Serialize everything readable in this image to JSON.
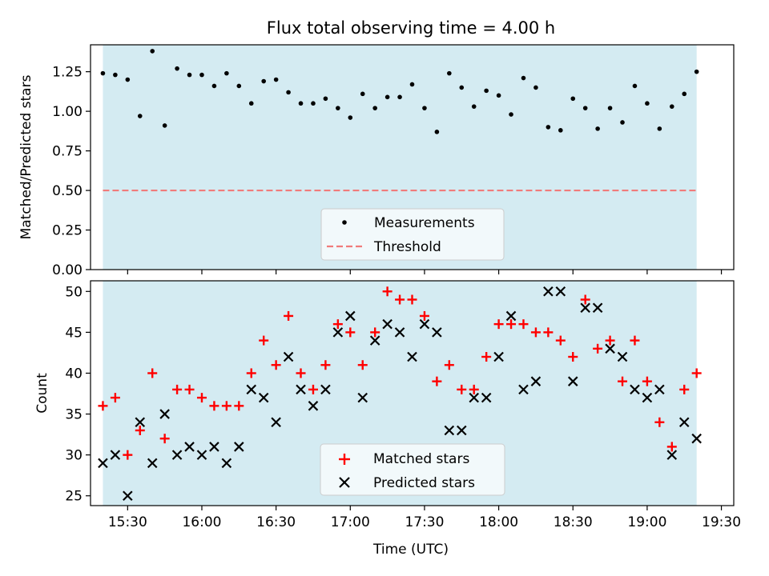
{
  "chart_data": [
    {
      "type": "scatter",
      "title": "Flux total observing time = 4.00 h",
      "ylabel": "Matched/Predicted stars",
      "xlabel": "",
      "xlim": [
        "15:15",
        "19:35"
      ],
      "ylim": [
        0,
        1.42
      ],
      "yticks": [
        0.0,
        0.25,
        0.5,
        0.75,
        1.0,
        1.25
      ],
      "ytick_labels": [
        "0.00",
        "0.25",
        "0.50",
        "0.75",
        "1.00",
        "1.25"
      ],
      "observing_window": [
        "15:20",
        "19:20"
      ],
      "window_color": "#d4ebf2",
      "legend_position": "lower center",
      "series": [
        {
          "name": "Measurements",
          "marker": "dot",
          "color": "#000000",
          "x": [
            "15:20",
            "15:25",
            "15:30",
            "15:35",
            "15:40",
            "15:45",
            "15:50",
            "15:55",
            "16:00",
            "16:05",
            "16:10",
            "16:15",
            "16:20",
            "16:25",
            "16:30",
            "16:35",
            "16:40",
            "16:45",
            "16:50",
            "16:55",
            "17:00",
            "17:05",
            "17:10",
            "17:15",
            "17:20",
            "17:25",
            "17:30",
            "17:35",
            "17:40",
            "17:45",
            "17:50",
            "17:55",
            "18:00",
            "18:05",
            "18:10",
            "18:15",
            "18:20",
            "18:25",
            "18:30",
            "18:35",
            "18:40",
            "18:45",
            "18:50",
            "18:55",
            "19:00",
            "19:05",
            "19:10",
            "19:15",
            "19:20"
          ],
          "values": [
            1.24,
            1.23,
            1.2,
            0.97,
            1.38,
            0.91,
            1.27,
            1.23,
            1.23,
            1.16,
            1.24,
            1.16,
            1.05,
            1.19,
            1.2,
            1.12,
            1.05,
            1.05,
            1.08,
            1.02,
            0.96,
            1.11,
            1.02,
            1.09,
            1.09,
            1.17,
            1.02,
            0.87,
            1.24,
            1.15,
            1.03,
            1.13,
            1.1,
            0.98,
            1.21,
            1.15,
            0.9,
            0.88,
            1.08,
            1.02,
            0.89,
            1.02,
            0.93,
            1.16,
            1.05,
            0.89,
            1.03,
            1.11,
            1.25
          ]
        },
        {
          "name": "Threshold",
          "style": "dashed-line",
          "color": "#f07b7b",
          "x": [
            "15:20",
            "19:20"
          ],
          "values": [
            0.5,
            0.5
          ]
        }
      ]
    },
    {
      "type": "scatter",
      "title": "",
      "ylabel": "Count",
      "xlabel": "Time (UTC)",
      "xlim": [
        "15:15",
        "19:35"
      ],
      "ylim": [
        23.8,
        51.3
      ],
      "yticks": [
        25,
        30,
        35,
        40,
        45,
        50
      ],
      "ytick_labels": [
        "25",
        "30",
        "35",
        "40",
        "45",
        "50"
      ],
      "xticks": [
        "15:30",
        "16:00",
        "16:30",
        "17:00",
        "17:30",
        "18:00",
        "18:30",
        "19:00",
        "19:30"
      ],
      "observing_window": [
        "15:20",
        "19:20"
      ],
      "window_color": "#d4ebf2",
      "legend_position": "lower center",
      "series": [
        {
          "name": "Matched stars",
          "marker": "plus",
          "color": "#ff0000",
          "x": [
            "15:20",
            "15:25",
            "15:30",
            "15:35",
            "15:40",
            "15:45",
            "15:50",
            "15:55",
            "16:00",
            "16:05",
            "16:10",
            "16:15",
            "16:20",
            "16:25",
            "16:30",
            "16:35",
            "16:40",
            "16:45",
            "16:50",
            "16:55",
            "17:00",
            "17:05",
            "17:10",
            "17:15",
            "17:20",
            "17:25",
            "17:30",
            "17:35",
            "17:40",
            "17:45",
            "17:50",
            "17:55",
            "18:00",
            "18:05",
            "18:10",
            "18:15",
            "18:20",
            "18:25",
            "18:30",
            "18:35",
            "18:40",
            "18:45",
            "18:50",
            "18:55",
            "19:00",
            "19:05",
            "19:10",
            "19:15",
            "19:20"
          ],
          "values": [
            36,
            37,
            30,
            33,
            40,
            32,
            38,
            38,
            37,
            36,
            36,
            36,
            40,
            44,
            41,
            47,
            40,
            38,
            41,
            46,
            45,
            41,
            45,
            50,
            49,
            49,
            47,
            39,
            41,
            38,
            38,
            42,
            46,
            46,
            46,
            45,
            45,
            44,
            42,
            49,
            43,
            44,
            39,
            44,
            39,
            34,
            31,
            38,
            40
          ]
        },
        {
          "name": "Predicted stars",
          "marker": "x",
          "color": "#000000",
          "x": [
            "15:20",
            "15:25",
            "15:30",
            "15:35",
            "15:40",
            "15:45",
            "15:50",
            "15:55",
            "16:00",
            "16:05",
            "16:10",
            "16:15",
            "16:20",
            "16:25",
            "16:30",
            "16:35",
            "16:40",
            "16:45",
            "16:50",
            "16:55",
            "17:00",
            "17:05",
            "17:10",
            "17:15",
            "17:20",
            "17:25",
            "17:30",
            "17:35",
            "17:40",
            "17:45",
            "17:50",
            "17:55",
            "18:00",
            "18:05",
            "18:10",
            "18:15",
            "18:20",
            "18:25",
            "18:30",
            "18:35",
            "18:40",
            "18:45",
            "18:50",
            "18:55",
            "19:00",
            "19:05",
            "19:10",
            "19:15",
            "19:20"
          ],
          "values": [
            29,
            30,
            25,
            34,
            29,
            35,
            30,
            31,
            30,
            31,
            29,
            31,
            38,
            37,
            34,
            42,
            38,
            36,
            38,
            45,
            47,
            37,
            44,
            46,
            45,
            42,
            46,
            45,
            33,
            33,
            37,
            37,
            42,
            47,
            38,
            39,
            50,
            50,
            39,
            48,
            48,
            43,
            42,
            38,
            37,
            38,
            30,
            34,
            32
          ]
        }
      ]
    }
  ]
}
